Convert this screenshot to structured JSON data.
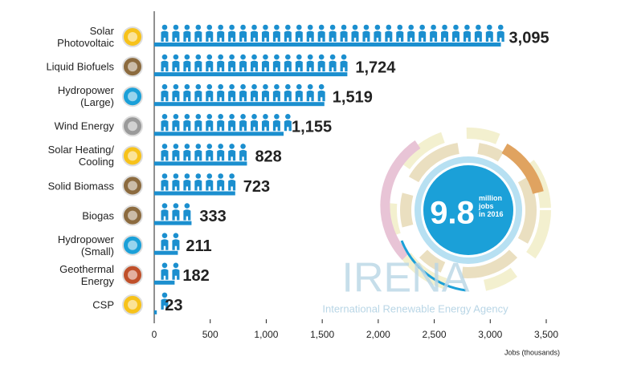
{
  "chart_data": {
    "type": "bar",
    "orientation": "horizontal",
    "categories": [
      "Solar\nPhotovoltaic",
      "Liquid Biofuels",
      "Hydropower\n(Large)",
      "Wind Energy",
      "Solar Heating/\nCooling",
      "Solid Biomass",
      "Biogas",
      "Hydropower\n(Small)",
      "Geothermal\nEnergy",
      "CSP"
    ],
    "values": [
      3095,
      1724,
      1519,
      1155,
      828,
      723,
      333,
      211,
      182,
      23
    ],
    "value_labels": [
      "3,095",
      "1,724",
      "1,519",
      "1,155",
      "828",
      "723",
      "333",
      "211",
      "182",
      "23"
    ],
    "color": "#1b8fcf",
    "xlim": [
      0,
      3500
    ],
    "xticks": [
      0,
      500,
      {
        "value": 1000,
        "label": "1,000"
      },
      {
        "value": 1500,
        "label": "1,500"
      },
      {
        "value": 2000,
        "label": "2,000"
      },
      {
        "value": 2500,
        "label": "2,500"
      },
      {
        "value": 3000,
        "label": "3,000"
      },
      {
        "value": 3500,
        "label": "3,500"
      }
    ],
    "xlabel": "Jobs (thousands)",
    "annotations": {
      "total": "9.8",
      "total_text": "million\njobs\nin 2016",
      "logo": "IRENA",
      "logo_text": "International Renewable Energy Agency"
    }
  }
}
